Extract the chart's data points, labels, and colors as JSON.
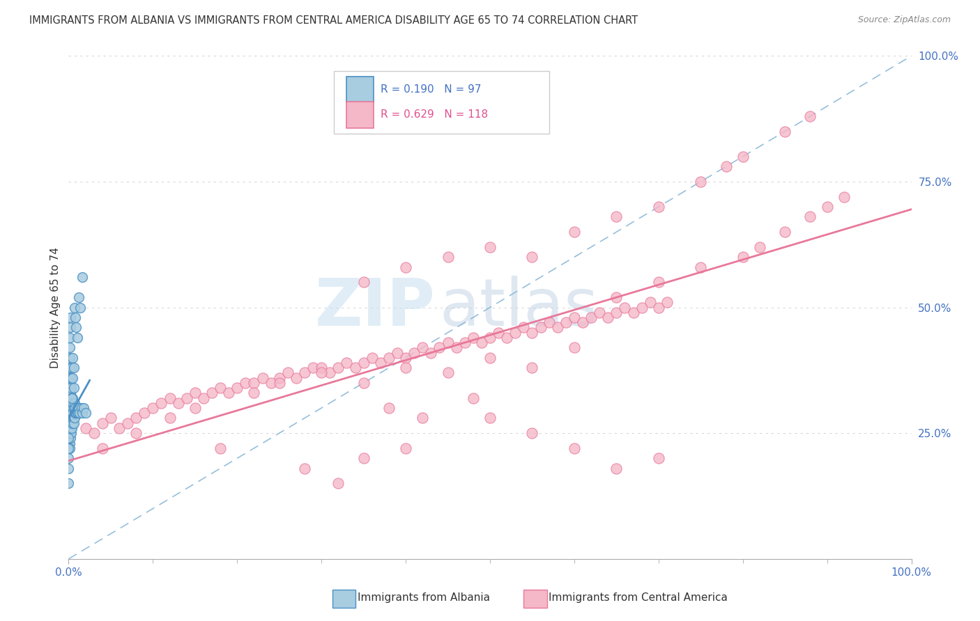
{
  "title": "IMMIGRANTS FROM ALBANIA VS IMMIGRANTS FROM CENTRAL AMERICA DISABILITY AGE 65 TO 74 CORRELATION CHART",
  "source": "Source: ZipAtlas.com",
  "ylabel": "Disability Age 65 to 74",
  "r_albania": 0.19,
  "n_albania": 97,
  "r_central": 0.629,
  "n_central": 118,
  "color_albania": "#a8cce0",
  "color_albania_edge": "#4a90c4",
  "color_central": "#f4b8c8",
  "color_central_edge": "#e8789a",
  "regression_color_albania": "#4a90c4",
  "regression_color_central": "#e8789a",
  "diagonal_color": "#8ab8d8",
  "background_color": "#ffffff",
  "watermark_zip": "ZIP",
  "watermark_atlas": "atlas",
  "xlim": [
    0.0,
    1.0
  ],
  "ylim": [
    0.0,
    1.0
  ],
  "ytick_positions": [
    0.0,
    0.25,
    0.5,
    0.75,
    1.0
  ],
  "legend_albania": "Immigrants from Albania",
  "legend_central": "Immigrants from Central America",
  "albania_x": [
    0.001,
    0.001,
    0.001,
    0.001,
    0.001,
    0.001,
    0.001,
    0.001,
    0.001,
    0.001,
    0.001,
    0.002,
    0.002,
    0.002,
    0.002,
    0.002,
    0.002,
    0.002,
    0.002,
    0.002,
    0.002,
    0.002,
    0.002,
    0.002,
    0.002,
    0.002,
    0.003,
    0.003,
    0.003,
    0.003,
    0.003,
    0.003,
    0.003,
    0.003,
    0.003,
    0.003,
    0.003,
    0.004,
    0.004,
    0.004,
    0.004,
    0.004,
    0.004,
    0.004,
    0.004,
    0.004,
    0.005,
    0.005,
    0.005,
    0.005,
    0.005,
    0.005,
    0.006,
    0.006,
    0.006,
    0.007,
    0.007,
    0.007,
    0.008,
    0.008,
    0.009,
    0.01,
    0.01,
    0.011,
    0.012,
    0.013,
    0.015,
    0.016,
    0.018,
    0.02,
    0.0,
    0.0,
    0.0,
    0.0,
    0.0,
    0.0,
    0.001,
    0.001,
    0.001,
    0.001,
    0.002,
    0.002,
    0.003,
    0.003,
    0.004,
    0.004,
    0.005,
    0.005,
    0.006,
    0.006,
    0.007,
    0.008,
    0.009,
    0.01,
    0.012,
    0.014,
    0.016
  ],
  "albania_y": [
    0.28,
    0.3,
    0.32,
    0.25,
    0.27,
    0.23,
    0.29,
    0.31,
    0.26,
    0.35,
    0.22,
    0.3,
    0.27,
    0.33,
    0.25,
    0.28,
    0.31,
    0.24,
    0.29,
    0.26,
    0.32,
    0.27,
    0.3,
    0.28,
    0.25,
    0.33,
    0.28,
    0.31,
    0.26,
    0.29,
    0.27,
    0.3,
    0.32,
    0.25,
    0.28,
    0.31,
    0.29,
    0.28,
    0.3,
    0.27,
    0.32,
    0.29,
    0.26,
    0.31,
    0.28,
    0.3,
    0.28,
    0.27,
    0.32,
    0.3,
    0.29,
    0.31,
    0.28,
    0.3,
    0.27,
    0.29,
    0.28,
    0.31,
    0.29,
    0.3,
    0.29,
    0.29,
    0.3,
    0.29,
    0.3,
    0.29,
    0.3,
    0.29,
    0.3,
    0.29,
    0.15,
    0.18,
    0.2,
    0.22,
    0.24,
    0.36,
    0.38,
    0.4,
    0.42,
    0.44,
    0.46,
    0.48,
    0.36,
    0.34,
    0.32,
    0.38,
    0.4,
    0.36,
    0.34,
    0.38,
    0.5,
    0.48,
    0.46,
    0.44,
    0.52,
    0.5,
    0.56
  ],
  "central_x": [
    0.02,
    0.03,
    0.04,
    0.05,
    0.06,
    0.07,
    0.08,
    0.09,
    0.1,
    0.11,
    0.12,
    0.13,
    0.14,
    0.15,
    0.16,
    0.17,
    0.18,
    0.19,
    0.2,
    0.21,
    0.22,
    0.23,
    0.24,
    0.25,
    0.26,
    0.27,
    0.28,
    0.29,
    0.3,
    0.31,
    0.32,
    0.33,
    0.34,
    0.35,
    0.36,
    0.37,
    0.38,
    0.39,
    0.4,
    0.41,
    0.42,
    0.43,
    0.44,
    0.45,
    0.46,
    0.47,
    0.48,
    0.49,
    0.5,
    0.51,
    0.52,
    0.53,
    0.54,
    0.55,
    0.56,
    0.57,
    0.58,
    0.59,
    0.6,
    0.61,
    0.62,
    0.63,
    0.64,
    0.65,
    0.66,
    0.67,
    0.68,
    0.69,
    0.7,
    0.71,
    0.04,
    0.08,
    0.12,
    0.15,
    0.18,
    0.22,
    0.25,
    0.3,
    0.35,
    0.4,
    0.45,
    0.5,
    0.55,
    0.6,
    0.65,
    0.7,
    0.75,
    0.8,
    0.82,
    0.85,
    0.88,
    0.9,
    0.92,
    0.35,
    0.4,
    0.45,
    0.5,
    0.55,
    0.6,
    0.65,
    0.7,
    0.38,
    0.42,
    0.48,
    0.35,
    0.28,
    0.32,
    0.4,
    0.5,
    0.55,
    0.6,
    0.65,
    0.7,
    0.75,
    0.78,
    0.8,
    0.85,
    0.88
  ],
  "central_y": [
    0.26,
    0.25,
    0.27,
    0.28,
    0.26,
    0.27,
    0.28,
    0.29,
    0.3,
    0.31,
    0.32,
    0.31,
    0.32,
    0.33,
    0.32,
    0.33,
    0.34,
    0.33,
    0.34,
    0.35,
    0.35,
    0.36,
    0.35,
    0.36,
    0.37,
    0.36,
    0.37,
    0.38,
    0.38,
    0.37,
    0.38,
    0.39,
    0.38,
    0.39,
    0.4,
    0.39,
    0.4,
    0.41,
    0.4,
    0.41,
    0.42,
    0.41,
    0.42,
    0.43,
    0.42,
    0.43,
    0.44,
    0.43,
    0.44,
    0.45,
    0.44,
    0.45,
    0.46,
    0.45,
    0.46,
    0.47,
    0.46,
    0.47,
    0.48,
    0.47,
    0.48,
    0.49,
    0.48,
    0.49,
    0.5,
    0.49,
    0.5,
    0.51,
    0.5,
    0.51,
    0.22,
    0.25,
    0.28,
    0.3,
    0.22,
    0.33,
    0.35,
    0.37,
    0.35,
    0.38,
    0.37,
    0.4,
    0.38,
    0.42,
    0.52,
    0.55,
    0.58,
    0.6,
    0.62,
    0.65,
    0.68,
    0.7,
    0.72,
    0.55,
    0.58,
    0.6,
    0.62,
    0.6,
    0.65,
    0.68,
    0.7,
    0.3,
    0.28,
    0.32,
    0.2,
    0.18,
    0.15,
    0.22,
    0.28,
    0.25,
    0.22,
    0.18,
    0.2,
    0.75,
    0.78,
    0.8,
    0.85,
    0.88
  ]
}
